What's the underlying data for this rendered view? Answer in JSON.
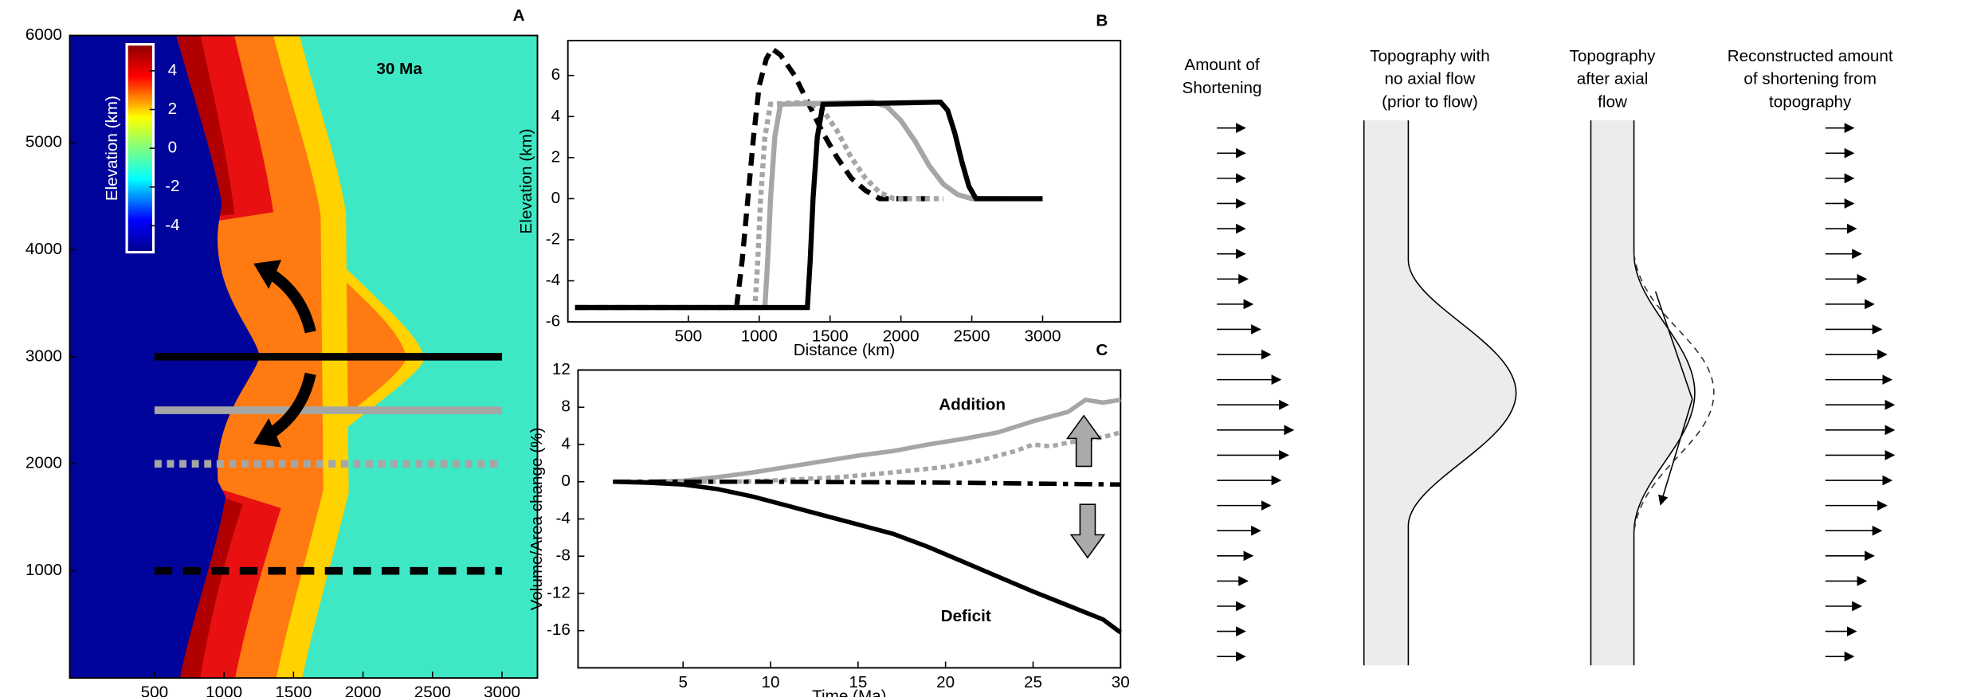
{
  "chart_data": [
    {
      "type": "map",
      "panel_label": "A",
      "annotation": "30 Ma",
      "colorbar_label": "Elevation (km)",
      "colorbar_lim": [
        -5.3,
        5.3
      ],
      "colorbar_ticks": [
        4,
        2,
        0,
        -2,
        -4
      ],
      "xlim": [
        -110,
        3255
      ],
      "ylim": [
        0,
        6000
      ],
      "xticks": [
        500,
        1000,
        1500,
        2000,
        2500,
        3000
      ],
      "yticks": [
        1000,
        2000,
        3000,
        4000,
        5000,
        6000
      ],
      "series": [
        {
          "color": "#000000",
          "style": "solid",
          "x": [
            500,
            3000
          ],
          "values": [
            3000,
            3000
          ]
        },
        {
          "color": "#a6a6a6",
          "style": "solid",
          "x": [
            500,
            3000
          ],
          "values": [
            2500,
            2500
          ]
        },
        {
          "color": "#a6a6a6",
          "style": "dotted",
          "x": [
            500,
            3000
          ],
          "values": [
            2000,
            2000
          ]
        },
        {
          "color": "#000000",
          "style": "dashed",
          "x": [
            500,
            3000
          ],
          "values": [
            1000,
            1000
          ]
        }
      ]
    },
    {
      "type": "line",
      "panel_label": "B",
      "xlabel": "Distance (km)",
      "ylabel": "Elevation (km)",
      "xlim": [
        -350,
        3550
      ],
      "ylim": [
        -6,
        7.7
      ],
      "xticks": [
        500,
        1000,
        1500,
        2000,
        2500,
        3000
      ],
      "yticks": [
        -6,
        -4,
        -2,
        0,
        2,
        4,
        6
      ],
      "series": [
        {
          "color": "#000000",
          "style": "dashed",
          "x": [
            -300,
            840,
            880,
            920,
            960,
            1000,
            1050,
            1090,
            1150,
            1250,
            1350,
            1450,
            1550,
            1650,
            1750,
            1850,
            2250
          ],
          "values": [
            -5.3,
            -5.3,
            -3,
            0,
            3,
            5.5,
            6.8,
            7.3,
            7.0,
            6.0,
            4.6,
            3.2,
            2.0,
            1.0,
            0.4,
            0,
            0
          ]
        },
        {
          "color": "#a6a6a6",
          "style": "dotted",
          "x": [
            -300,
            970,
            990,
            1010,
            1040,
            1080,
            1350,
            1450,
            1550,
            1650,
            1750,
            1850,
            1950,
            2300
          ],
          "values": [
            -5.3,
            -5.3,
            -3,
            0,
            3,
            4.6,
            4.7,
            4.3,
            3.3,
            2.0,
            1.0,
            0.3,
            0,
            0
          ]
        },
        {
          "color": "#a6a6a6",
          "style": "solid",
          "x": [
            -300,
            1040,
            1060,
            1080,
            1110,
            1150,
            1800,
            1900,
            2000,
            2100,
            2200,
            2300,
            2400,
            2500,
            2700
          ],
          "values": [
            -5.3,
            -5.3,
            -3,
            0,
            3,
            4.6,
            4.7,
            4.5,
            3.8,
            2.8,
            1.6,
            0.7,
            0.2,
            0,
            0
          ]
        },
        {
          "color": "#000000",
          "style": "solid",
          "x": [
            -300,
            1340,
            1360,
            1380,
            1410,
            1450,
            2280,
            2330,
            2380,
            2430,
            2480,
            2530,
            3000
          ],
          "values": [
            -5.3,
            -5.3,
            -3,
            0,
            3,
            4.6,
            4.7,
            4.3,
            3.2,
            1.8,
            0.6,
            0,
            0
          ]
        }
      ]
    },
    {
      "type": "line",
      "panel_label": "C",
      "xlabel": "Time (Ma)",
      "ylabel": "Volume/Area change (%)",
      "annotations": [
        "Addition",
        "Deficit"
      ],
      "xlim": [
        -1,
        30
      ],
      "ylim": [
        -20,
        12
      ],
      "xticks": [
        5,
        10,
        15,
        20,
        25,
        30
      ],
      "yticks": [
        12,
        8,
        4,
        0,
        -4,
        -8,
        -12,
        -16
      ],
      "series": [
        {
          "color": "#a6a6a6",
          "style": "solid",
          "x": [
            1,
            3,
            5,
            7,
            9,
            11,
            13,
            15,
            17,
            19,
            21,
            23,
            25,
            27,
            28,
            29,
            30
          ],
          "values": [
            0,
            0,
            0.1,
            0.5,
            1.0,
            1.6,
            2.2,
            2.8,
            3.3,
            4.0,
            4.6,
            5.3,
            6.5,
            7.5,
            8.8,
            8.5,
            8.8
          ]
        },
        {
          "color": "#a6a6a6",
          "style": "dotted",
          "x": [
            1,
            5,
            8,
            11,
            14,
            17,
            20,
            22,
            24,
            25,
            26,
            27,
            28,
            29,
            30
          ],
          "values": [
            0,
            0,
            0,
            0.2,
            0.5,
            1.0,
            1.6,
            2.3,
            3.3,
            4.0,
            3.8,
            4.2,
            4.5,
            4.8,
            5.3
          ]
        },
        {
          "color": "#000000",
          "style": "dashdot",
          "x": [
            1,
            10,
            20,
            30
          ],
          "values": [
            0,
            0,
            -0.1,
            -0.3
          ]
        },
        {
          "color": "#000000",
          "style": "solid",
          "x": [
            1,
            3,
            5,
            7,
            9,
            11,
            13,
            15,
            17,
            19,
            21,
            23,
            25,
            27,
            29,
            30
          ],
          "values": [
            0,
            -0.1,
            -0.3,
            -0.8,
            -1.6,
            -2.6,
            -3.6,
            -4.6,
            -5.6,
            -7.0,
            -8.6,
            -10.2,
            -11.8,
            -13.3,
            -14.8,
            -16.2
          ]
        }
      ]
    }
  ],
  "diagram": {
    "columns": [
      [
        "Amount of",
        "Shortening"
      ],
      [
        "Topography with",
        "no axial flow",
        "(prior to flow)"
      ],
      [
        "Topography",
        "after axial",
        "flow"
      ],
      [
        "Reconstructed amount",
        "of shortening from",
        "topography"
      ]
    ],
    "shortening_before": [
      22,
      22,
      22,
      22,
      22,
      22,
      24,
      28,
      34,
      42,
      50,
      56,
      60,
      56,
      50,
      42,
      34,
      28,
      24,
      22,
      22,
      22
    ],
    "shortening_reconstructed": [
      22,
      22,
      22,
      22,
      24,
      28,
      32,
      38,
      44,
      48,
      52,
      54,
      54,
      54,
      52,
      48,
      44,
      38,
      32,
      28,
      24,
      22
    ]
  }
}
